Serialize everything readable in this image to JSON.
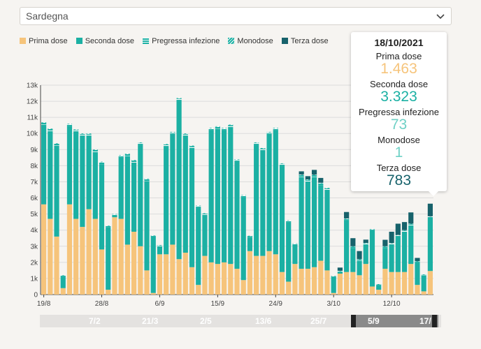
{
  "region_select": {
    "value": "Sardegna",
    "icon": "chevron-down-icon"
  },
  "legend": [
    {
      "label": "Prima dose",
      "color": "#f6c47b",
      "pattern": "solid"
    },
    {
      "label": "Seconda dose",
      "color": "#1bb0a3",
      "pattern": "solid"
    },
    {
      "label": "Pregressa infezione",
      "color": "#1bb0a3",
      "pattern": "horizontal-stripes"
    },
    {
      "label": "Monodose",
      "color": "#1bb0a3",
      "pattern": "diagonal-stripes"
    },
    {
      "label": "Terza dose",
      "color": "#17626b",
      "pattern": "solid"
    }
  ],
  "tooltip": {
    "date": "18/10/2021",
    "rows": [
      {
        "label": "Prima dose",
        "value": "1.463",
        "color": "#f6c47b"
      },
      {
        "label": "Seconda dose",
        "value": "3.323",
        "color": "#1bb0a3"
      },
      {
        "label": "Pregressa infezione",
        "value": "73",
        "color": "#6fd1c6"
      },
      {
        "label": "Monodose",
        "value": "1",
        "color": "#6fd1c6"
      },
      {
        "label": "Terza dose",
        "value": "783",
        "color": "#17626b"
      }
    ]
  },
  "chart_data": {
    "type": "bar",
    "stacked": true,
    "ylim": [
      0,
      13000
    ],
    "yticks": [
      "0",
      "1k",
      "2k",
      "3k",
      "4k",
      "5k",
      "6k",
      "7k",
      "8k",
      "9k",
      "10k",
      "11k",
      "12k",
      "13k"
    ],
    "xtick_labels": [
      "19/8",
      "28/8",
      "6/9",
      "15/9",
      "24/9",
      "3/10",
      "12/10"
    ],
    "xtick_positions": [
      0,
      9,
      18,
      27,
      36,
      45,
      54
    ],
    "grid": true,
    "highlighted_index": 60,
    "series": [
      {
        "name": "Prima dose",
        "color": "#f6c47b",
        "values": [
          5600,
          4700,
          3600,
          400,
          5600,
          4700,
          4200,
          5300,
          4700,
          2800,
          300,
          4800,
          4700,
          3100,
          3900,
          3000,
          1500,
          100,
          2500,
          2500,
          3100,
          2200,
          2600,
          1700,
          600,
          2400,
          2000,
          1900,
          2000,
          1900,
          1600,
          900,
          2700,
          2400,
          2400,
          2700,
          2500,
          1400,
          800,
          1900,
          1600,
          1600,
          1700,
          2100,
          1500,
          100,
          1300,
          1400,
          1400,
          1200,
          1900,
          500,
          300,
          1600,
          1400,
          1400,
          1400,
          1900,
          600,
          200,
          1463
        ]
      },
      {
        "name": "Seconda dose",
        "color": "#1bb0a3",
        "values": [
          4950,
          5450,
          5650,
          700,
          4850,
          5400,
          5650,
          4550,
          4150,
          5300,
          3900,
          100,
          3800,
          5500,
          4300,
          6300,
          5550,
          3500,
          500,
          6700,
          6850,
          9850,
          7250,
          7400,
          4800,
          2550,
          8200,
          8400,
          8200,
          8500,
          6650,
          5150,
          850,
          6900,
          6550,
          7250,
          7700,
          6600,
          3700,
          1200,
          5700,
          5400,
          5600,
          4700,
          5000,
          1000,
          100,
          3200,
          1500,
          900,
          1200,
          3500,
          300,
          1300,
          1700,
          2200,
          2500,
          2400,
          1400,
          1000,
          3323
        ]
      },
      {
        "name": "Pregressa infezione",
        "color": "#1bb0a3",
        "values": [
          120,
          120,
          120,
          90,
          120,
          120,
          120,
          120,
          120,
          120,
          60,
          80,
          120,
          120,
          120,
          120,
          120,
          60,
          60,
          120,
          120,
          120,
          120,
          120,
          100,
          80,
          120,
          120,
          120,
          120,
          120,
          100,
          80,
          120,
          120,
          120,
          120,
          120,
          90,
          60,
          120,
          120,
          110,
          110,
          100,
          40,
          60,
          100,
          80,
          80,
          90,
          60,
          40,
          80,
          80,
          80,
          80,
          80,
          60,
          40,
          73
        ]
      },
      {
        "name": "Monodose",
        "color": "#1bb0a3",
        "values": [
          30,
          30,
          30,
          20,
          30,
          30,
          30,
          30,
          30,
          30,
          15,
          20,
          30,
          30,
          30,
          30,
          30,
          15,
          15,
          30,
          30,
          30,
          30,
          30,
          25,
          20,
          30,
          30,
          30,
          30,
          30,
          25,
          20,
          30,
          30,
          30,
          30,
          30,
          20,
          15,
          30,
          30,
          30,
          30,
          25,
          10,
          15,
          25,
          20,
          20,
          20,
          15,
          10,
          20,
          20,
          20,
          20,
          20,
          15,
          10,
          1
        ]
      },
      {
        "name": "Terza dose",
        "color": "#17626b",
        "values": [
          0,
          0,
          0,
          0,
          0,
          0,
          0,
          0,
          0,
          0,
          0,
          0,
          0,
          0,
          0,
          0,
          0,
          0,
          0,
          0,
          0,
          0,
          0,
          0,
          0,
          0,
          0,
          0,
          0,
          0,
          0,
          0,
          0,
          0,
          0,
          0,
          0,
          0,
          0,
          0,
          200,
          200,
          300,
          300,
          0,
          0,
          200,
          400,
          500,
          500,
          200,
          0,
          0,
          400,
          700,
          700,
          500,
          700,
          200,
          0,
          783
        ]
      }
    ]
  },
  "time_brush": {
    "labels": [
      "7/2",
      "21/3",
      "2/5",
      "13/6",
      "25/7",
      "5/9",
      "17/"
    ]
  }
}
